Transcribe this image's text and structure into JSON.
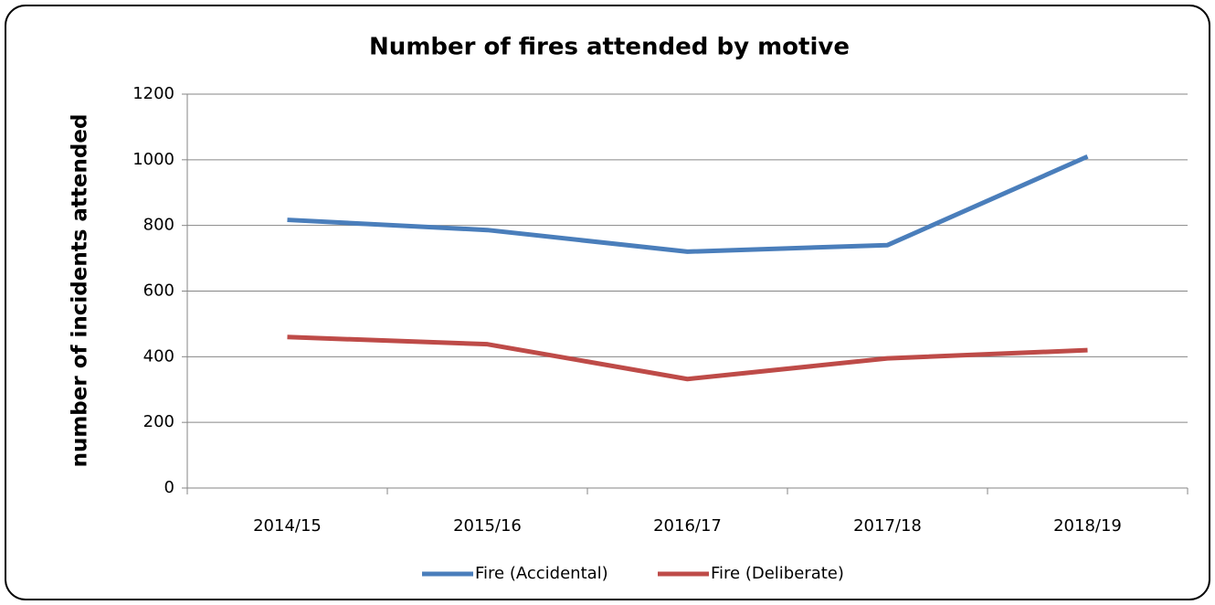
{
  "chart_data": {
    "type": "line",
    "title": "Number of fires attended by motive",
    "y_label": "number of incidents attended",
    "categories": [
      "2014/15",
      "2015/16",
      "2016/17",
      "2017/18",
      "2018/19"
    ],
    "series": [
      {
        "name": "Fire (Accidental)",
        "color": "#4a7ebb",
        "values": [
          817,
          786,
          720,
          740,
          1010
        ]
      },
      {
        "name": "Fire (Deliberate)",
        "color": "#be4b48",
        "values": [
          460,
          438,
          332,
          395,
          420
        ]
      }
    ],
    "ylim": [
      0,
      1200
    ],
    "yticks": [
      0,
      200,
      400,
      600,
      800,
      1000,
      1200
    ],
    "grid": true,
    "legend": "bottom"
  }
}
